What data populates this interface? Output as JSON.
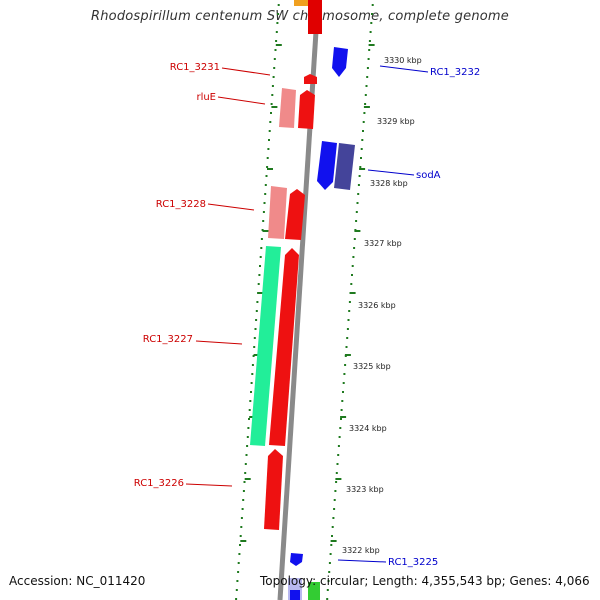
{
  "title": "Rhodospirillum centenum SW chromosome, complete genome",
  "footer": {
    "accession": "Accession: NC_011420",
    "summary": "Topology: circular; Length: 4,355,543 bp; Genes: 4,066"
  },
  "colors": {
    "reverse_label": "#cc0000",
    "forward_label": "#0000cc",
    "backbone": "#888888",
    "tick": "#1f7a1f"
  },
  "position_labels": [
    {
      "id": "kbp-3330",
      "text": "3330 kbp"
    },
    {
      "id": "kbp-3329",
      "text": "3329 kbp"
    },
    {
      "id": "kbp-3328",
      "text": "3328 kbp"
    },
    {
      "id": "kbp-3327",
      "text": "3327 kbp"
    },
    {
      "id": "kbp-3326",
      "text": "3326 kbp"
    },
    {
      "id": "kbp-3325",
      "text": "3325 kbp"
    },
    {
      "id": "kbp-3324",
      "text": "3324 kbp"
    },
    {
      "id": "kbp-3323",
      "text": "3323 kbp"
    },
    {
      "id": "kbp-3322",
      "text": "3322 kbp"
    }
  ],
  "gene_labels": [
    {
      "id": "rc1-3231",
      "text": "RC1_3231",
      "strand": "reverse"
    },
    {
      "id": "rlue",
      "text": "rluE",
      "strand": "reverse"
    },
    {
      "id": "rc1-3228",
      "text": "RC1_3228",
      "strand": "reverse"
    },
    {
      "id": "rc1-3227",
      "text": "RC1_3227",
      "strand": "reverse"
    },
    {
      "id": "rc1-3226",
      "text": "RC1_3226",
      "strand": "reverse"
    },
    {
      "id": "rc1-3232",
      "text": "RC1_3232",
      "strand": "forward"
    },
    {
      "id": "soda",
      "text": "sodA",
      "strand": "forward"
    },
    {
      "id": "rc1-3225",
      "text": "RC1_3225",
      "strand": "forward"
    }
  ]
}
